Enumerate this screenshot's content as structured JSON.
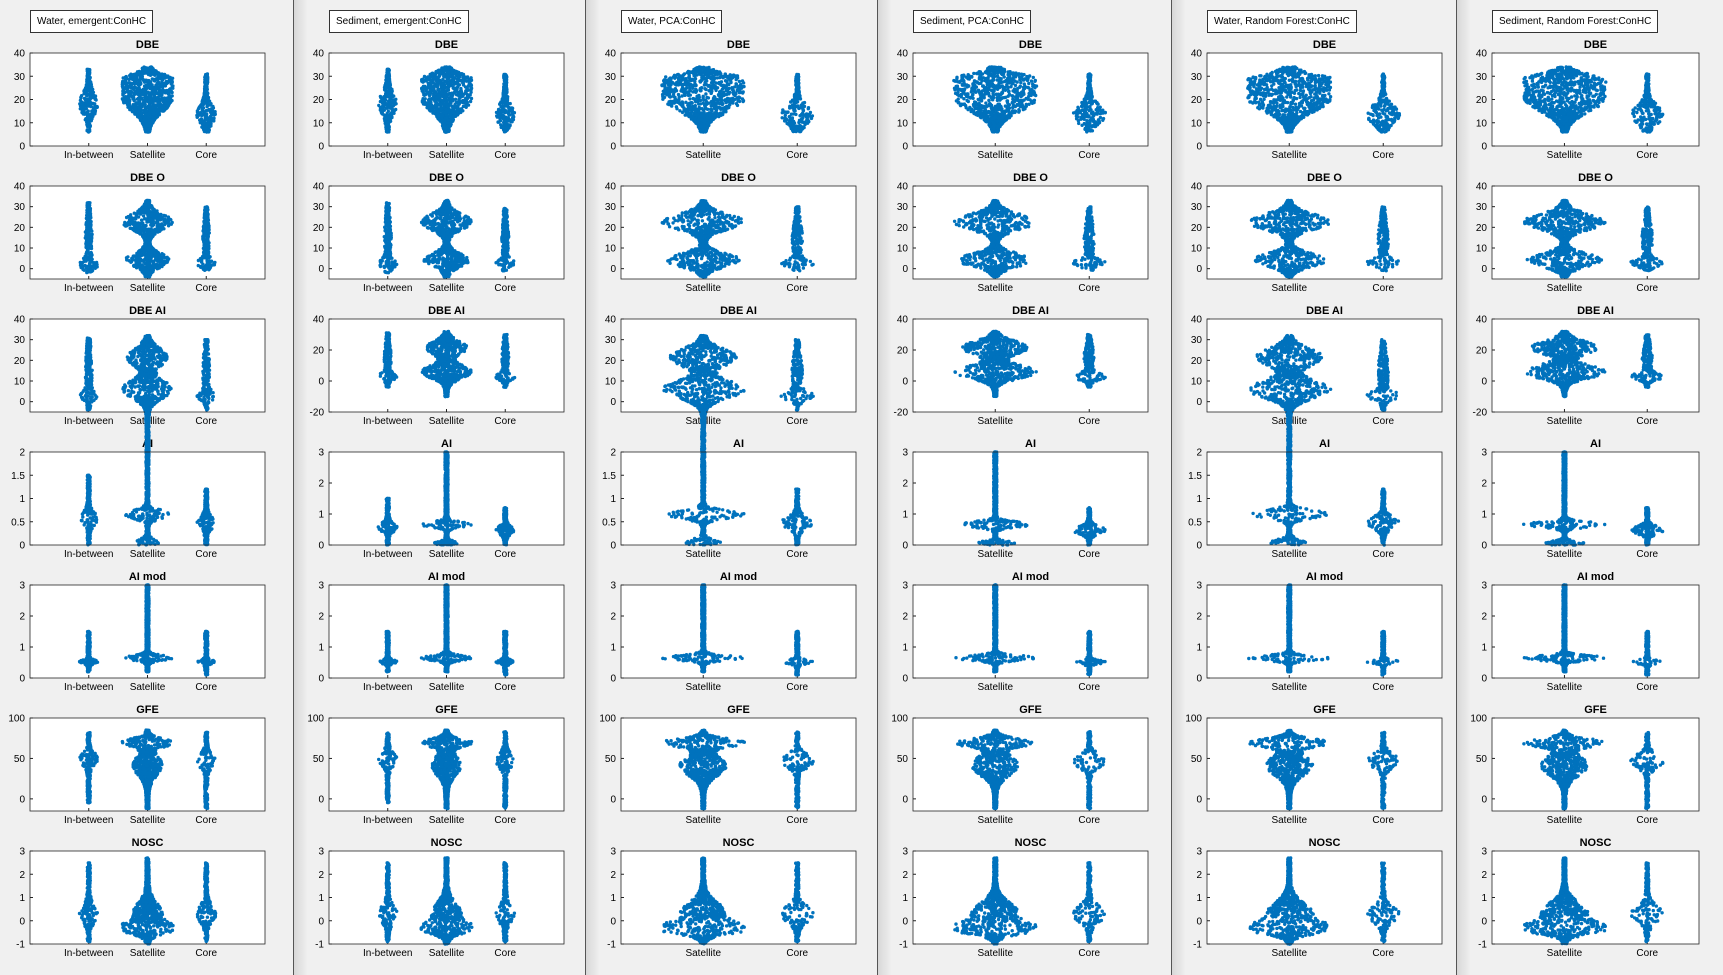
{
  "panels": [
    {
      "title": "Water, emergent:ConHC",
      "categories": [
        "In-between",
        "Satellite",
        "Core"
      ],
      "plots": [
        {
          "title": "DBE",
          "yticks": [
            0,
            10,
            20,
            30,
            40
          ]
        },
        {
          "title": "DBE O",
          "yticks": [
            0,
            10,
            20,
            30,
            40
          ]
        },
        {
          "title": "DBE AI",
          "yticks": [
            0,
            10,
            20,
            30,
            40
          ]
        },
        {
          "title": "AI",
          "yticks": [
            "0",
            "0.5",
            "1",
            "1.5",
            "2"
          ]
        },
        {
          "title": "AI mod",
          "yticks": [
            0,
            1,
            2,
            3
          ]
        },
        {
          "title": "GFE",
          "yticks": [
            0,
            50,
            100
          ]
        },
        {
          "title": "NOSC",
          "yticks": [
            -1,
            0,
            1,
            2,
            3
          ]
        }
      ]
    },
    {
      "title": "Sediment, emergent:ConHC",
      "categories": [
        "In-between",
        "Satellite",
        "Core"
      ],
      "plots": [
        {
          "title": "DBE",
          "yticks": [
            0,
            10,
            20,
            30,
            40
          ]
        },
        {
          "title": "DBE O",
          "yticks": [
            0,
            10,
            20,
            30,
            40
          ]
        },
        {
          "title": "DBE AI",
          "yticks": [
            -20,
            0,
            20,
            40
          ]
        },
        {
          "title": "AI",
          "yticks": [
            0,
            1,
            2,
            3
          ]
        },
        {
          "title": "AI mod",
          "yticks": [
            0,
            1,
            2,
            3
          ]
        },
        {
          "title": "GFE",
          "yticks": [
            0,
            50,
            100
          ]
        },
        {
          "title": "NOSC",
          "yticks": [
            -1,
            0,
            1,
            2,
            3
          ]
        }
      ]
    },
    {
      "title": "Water, PCA:ConHC",
      "categories": [
        "Satellite",
        "Core"
      ],
      "plots": [
        {
          "title": "DBE",
          "yticks": [
            0,
            10,
            20,
            30,
            40
          ]
        },
        {
          "title": "DBE O",
          "yticks": [
            0,
            10,
            20,
            30,
            40
          ]
        },
        {
          "title": "DBE AI",
          "yticks": [
            0,
            10,
            20,
            30,
            40
          ]
        },
        {
          "title": "AI",
          "yticks": [
            "0",
            "0.5",
            "1",
            "1.5",
            "2"
          ]
        },
        {
          "title": "AI mod",
          "yticks": [
            0,
            1,
            2,
            3
          ]
        },
        {
          "title": "GFE",
          "yticks": [
            0,
            50,
            100
          ]
        },
        {
          "title": "NOSC",
          "yticks": [
            -1,
            0,
            1,
            2,
            3
          ]
        }
      ]
    },
    {
      "title": "Sediment, PCA:ConHC",
      "categories": [
        "Satellite",
        "Core"
      ],
      "plots": [
        {
          "title": "DBE",
          "yticks": [
            0,
            10,
            20,
            30,
            40
          ]
        },
        {
          "title": "DBE O",
          "yticks": [
            0,
            10,
            20,
            30,
            40
          ]
        },
        {
          "title": "DBE AI",
          "yticks": [
            -20,
            0,
            20,
            40
          ]
        },
        {
          "title": "AI",
          "yticks": [
            0,
            1,
            2,
            3
          ]
        },
        {
          "title": "AI mod",
          "yticks": [
            0,
            1,
            2,
            3
          ]
        },
        {
          "title": "GFE",
          "yticks": [
            0,
            50,
            100
          ]
        },
        {
          "title": "NOSC",
          "yticks": [
            -1,
            0,
            1,
            2,
            3
          ]
        }
      ]
    },
    {
      "title": "Water, Random Forest:ConHC",
      "categories": [
        "Satellite",
        "Core"
      ],
      "plots": [
        {
          "title": "DBE",
          "yticks": [
            0,
            10,
            20,
            30,
            40
          ]
        },
        {
          "title": "DBE O",
          "yticks": [
            0,
            10,
            20,
            30,
            40
          ]
        },
        {
          "title": "DBE AI",
          "yticks": [
            0,
            10,
            20,
            30,
            40
          ]
        },
        {
          "title": "AI",
          "yticks": [
            "0",
            "0.5",
            "1",
            "1.5",
            "2"
          ]
        },
        {
          "title": "AI mod",
          "yticks": [
            0,
            1,
            2,
            3
          ]
        },
        {
          "title": "GFE",
          "yticks": [
            0,
            50,
            100
          ]
        },
        {
          "title": "NOSC",
          "yticks": [
            -1,
            0,
            1,
            2,
            3
          ]
        }
      ]
    },
    {
      "title": "Sediment, Random Forest:ConHC",
      "categories": [
        "Satellite",
        "Core"
      ],
      "plots": [
        {
          "title": "DBE",
          "yticks": [
            0,
            10,
            20,
            30,
            40
          ]
        },
        {
          "title": "DBE O",
          "yticks": [
            0,
            10,
            20,
            30,
            40
          ]
        },
        {
          "title": "DBE AI",
          "yticks": [
            -20,
            0,
            20,
            40
          ]
        },
        {
          "title": "AI",
          "yticks": [
            0,
            1,
            2,
            3
          ]
        },
        {
          "title": "AI mod",
          "yticks": [
            0,
            1,
            2,
            3
          ]
        },
        {
          "title": "GFE",
          "yticks": [
            0,
            50,
            100
          ]
        },
        {
          "title": "NOSC",
          "yticks": [
            -1,
            0,
            1,
            2,
            3
          ]
        }
      ]
    }
  ],
  "chart_data": {
    "type": "scatter",
    "style": "beeswarm",
    "marker_color": "#0072bd",
    "grid": "off",
    "ylim_by_variable": {
      "DBE": [
        0,
        40
      ],
      "DBE O": [
        -5,
        40
      ],
      "AI mod": [
        0,
        3
      ],
      "GFE": [
        -15,
        100
      ],
      "NOSC": [
        -1,
        3
      ]
    },
    "distributions": {
      "DBE": {
        "In-between": {
          "range": [
            6,
            33
          ],
          "center": 17
        },
        "Satellite": {
          "range": [
            6,
            34
          ],
          "center": 20
        },
        "Core": {
          "range": [
            6,
            31
          ],
          "center": 14
        }
      },
      "DBE O": {
        "In-between": {
          "range": [
            -2,
            32
          ],
          "center": 3
        },
        "Satellite": {
          "range": [
            -4,
            33
          ],
          "center": 12
        },
        "Core": {
          "range": [
            -1,
            30
          ],
          "center": 3
        }
      },
      "DBE AI": {
        "In-between": {
          "range": [
            -4,
            31
          ],
          "center": 4
        },
        "Satellite": {
          "range": [
            -10,
            32
          ],
          "center": 10
        },
        "Core": {
          "range": [
            -4,
            30
          ],
          "center": 4
        }
      },
      "AI": {
        "In-between": {
          "range": [
            0,
            1.5
          ],
          "center": 0.6
        },
        "Satellite": {
          "range": [
            0,
            3
          ],
          "center": 0.67
        },
        "Core": {
          "range": [
            0,
            1.2
          ],
          "center": 0.5
        }
      },
      "AI mod": {
        "In-between": {
          "range": [
            0.2,
            1.5
          ],
          "center": 0.65
        },
        "Satellite": {
          "range": [
            0.2,
            3
          ],
          "center": 0.67
        },
        "Core": {
          "range": [
            0.1,
            1.5
          ],
          "center": 0.62
        }
      },
      "GFE": {
        "In-between": {
          "range": [
            -5,
            82
          ],
          "center": 47
        },
        "Satellite": {
          "range": [
            -12,
            85
          ],
          "center": 68
        },
        "Core": {
          "range": [
            -12,
            83
          ],
          "center": 47
        }
      },
      "NOSC": {
        "In-between": {
          "range": [
            -0.9,
            2.5
          ],
          "center": 0.4
        },
        "Satellite": {
          "range": [
            -1,
            2.7
          ],
          "center": -0.2
        },
        "Core": {
          "range": [
            -0.9,
            2.5
          ],
          "center": 0.4
        }
      }
    }
  }
}
